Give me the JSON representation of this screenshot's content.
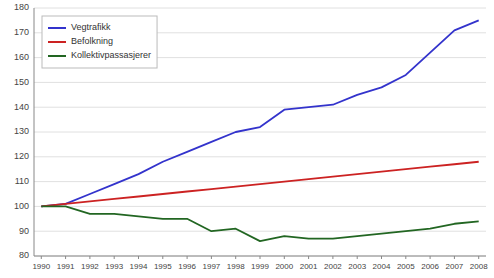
{
  "chart_data": {
    "type": "line",
    "x": [
      1990,
      1991,
      1992,
      1993,
      1994,
      1995,
      1996,
      1997,
      1998,
      1999,
      2000,
      2001,
      2002,
      2003,
      2004,
      2005,
      2006,
      2007,
      2008
    ],
    "series": [
      {
        "name": "Vegtrafikk",
        "color": "#3333CC",
        "values": [
          100,
          101,
          105,
          109,
          113,
          118,
          122,
          126,
          130,
          132,
          139,
          140,
          141,
          145,
          148,
          153,
          162,
          171,
          175
        ]
      },
      {
        "name": "Befolkning",
        "color": "#CC2222",
        "values": [
          100,
          101,
          102,
          103,
          104,
          105,
          106,
          107,
          108,
          109,
          110,
          111,
          112,
          113,
          114,
          115,
          116,
          117,
          118
        ]
      },
      {
        "name": "Kollektivpassasjerer",
        "color": "#226622",
        "values": [
          100,
          100,
          97,
          97,
          96,
          95,
          95,
          90,
          91,
          86,
          88,
          87,
          87,
          88,
          89,
          90,
          91,
          93,
          94
        ]
      }
    ],
    "xlim": [
      1989.7,
      2008.3
    ],
    "xticks": [
      1990,
      1991,
      1992,
      1993,
      1994,
      1995,
      1996,
      1997,
      1998,
      1999,
      2000,
      2001,
      2002,
      2003,
      2004,
      2005,
      2006,
      2007,
      2008
    ],
    "ylim": [
      80,
      180
    ],
    "yticks": [
      80,
      90,
      100,
      110,
      120,
      130,
      140,
      150,
      160,
      170,
      180
    ],
    "grid": true,
    "legend": "upper left"
  }
}
